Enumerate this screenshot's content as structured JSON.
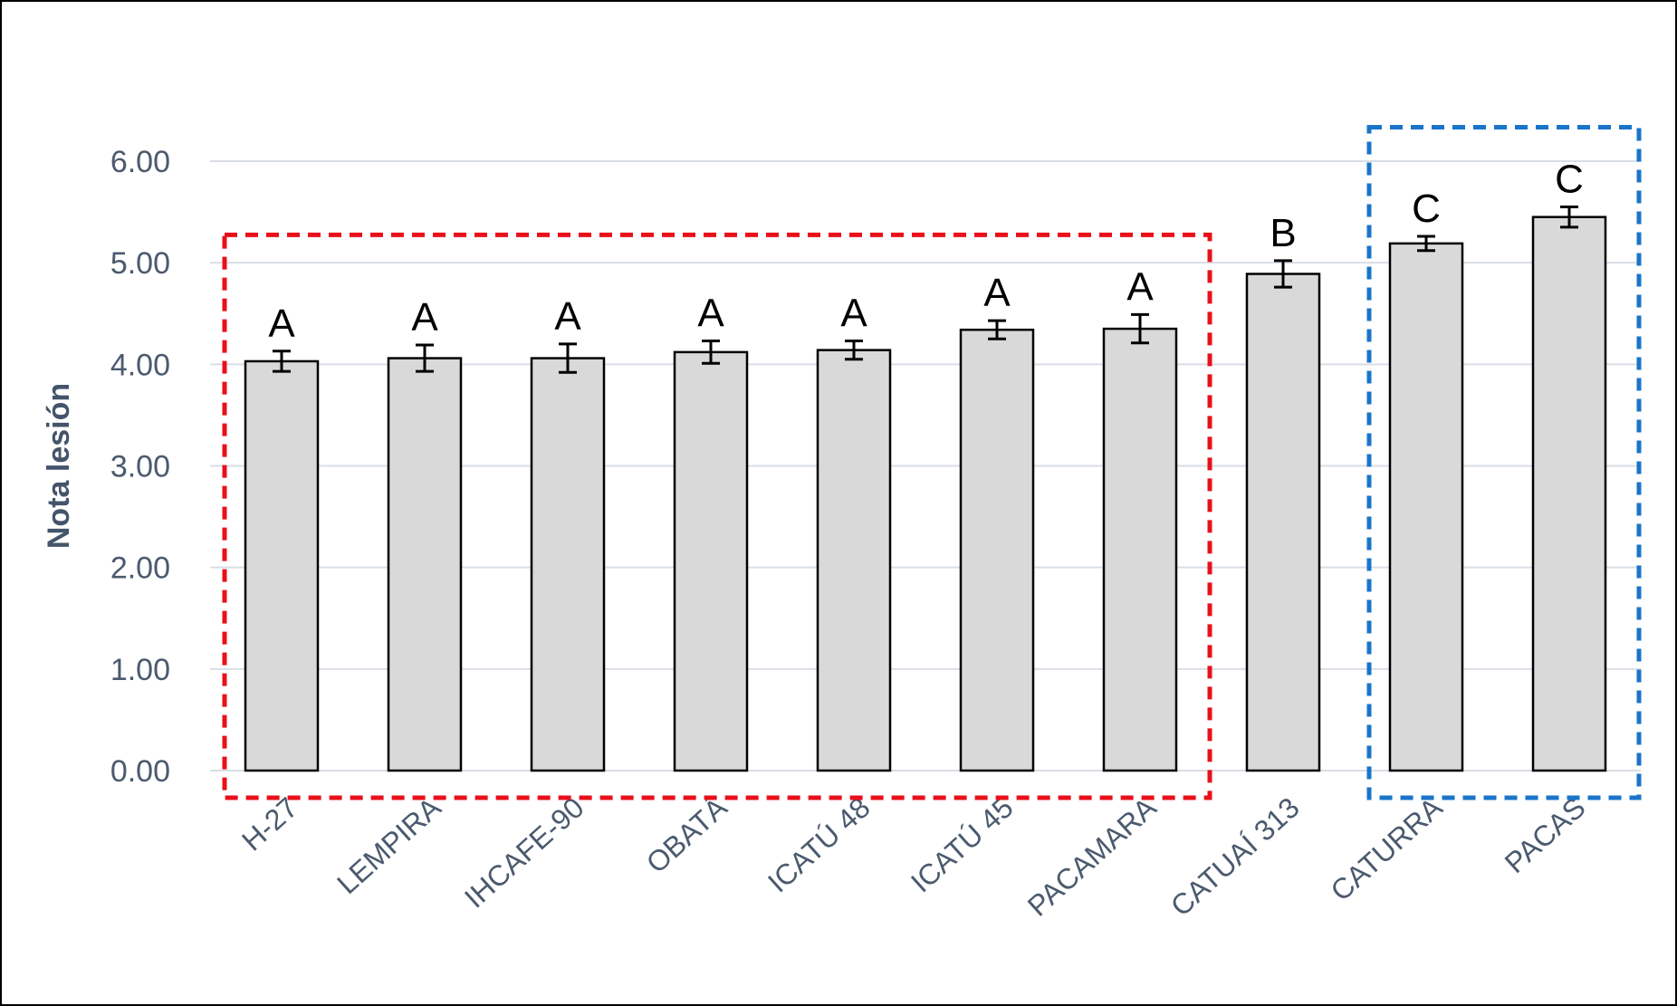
{
  "chart_data": {
    "type": "bar",
    "title": "",
    "xlabel": "",
    "ylabel": "Nota lesión",
    "ylim": [
      0,
      6
    ],
    "yticks": [
      "0.00",
      "1.00",
      "2.00",
      "3.00",
      "4.00",
      "5.00",
      "6.00"
    ],
    "grid": true,
    "legend": "none",
    "categories": [
      "H-27",
      "LEMPIRA",
      "IHCAFE-90",
      "OBATÁ",
      "ICATÚ 48",
      "ICATÚ 45",
      "PACAMARA",
      "CATUAÍ 313",
      "CATURRA",
      "PACAS"
    ],
    "values": [
      4.03,
      4.06,
      4.06,
      4.12,
      4.14,
      4.34,
      4.35,
      4.89,
      5.19,
      5.45
    ],
    "errors": [
      0.1,
      0.13,
      0.14,
      0.11,
      0.09,
      0.09,
      0.14,
      0.13,
      0.07,
      0.1
    ],
    "group_labels": [
      "A",
      "A",
      "A",
      "A",
      "A",
      "A",
      "A",
      "B",
      "C",
      "C"
    ],
    "bar_color": "#d9d9d9",
    "grid_color": "#d9dee6",
    "highlight_boxes": [
      {
        "categories": [
          "H-27",
          "LEMPIRA",
          "IHCAFE-90",
          "OBATÁ",
          "ICATÚ 48",
          "ICATÚ 45",
          "PACAMARA"
        ],
        "color": "#e8101a"
      },
      {
        "categories": [
          "CATURRA",
          "PACAS"
        ],
        "color": "#1a74c9"
      }
    ]
  }
}
